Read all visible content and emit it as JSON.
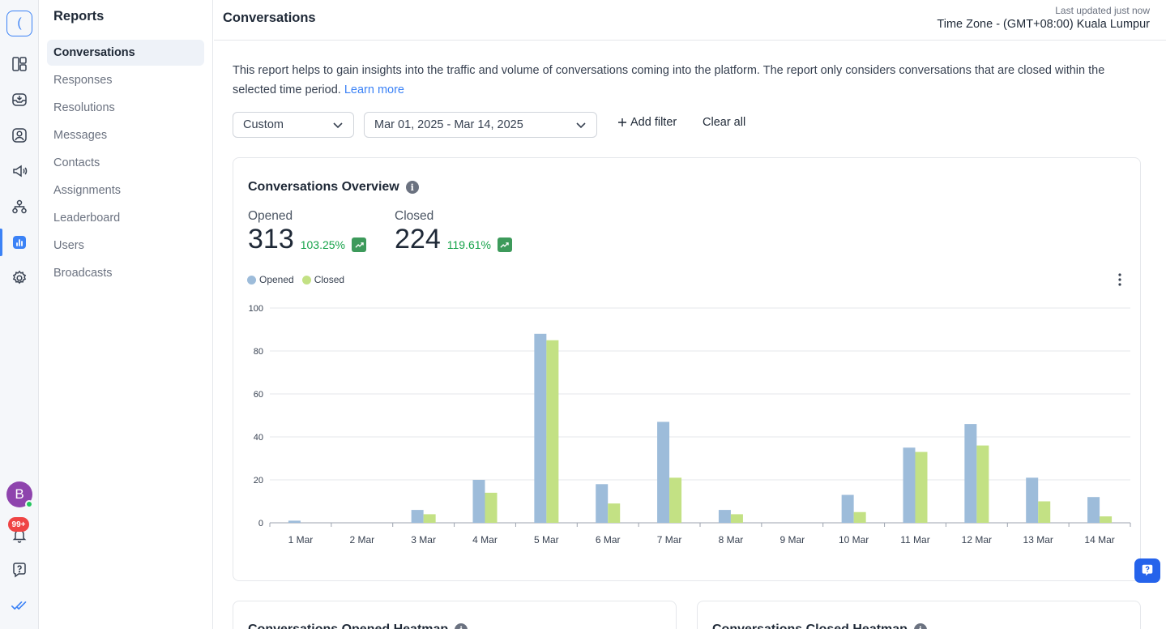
{
  "rail": {
    "logo": "(",
    "avatar_initial": "B",
    "notifications_badge": "99+",
    "accent": "#3b82f6"
  },
  "sidebar": {
    "title": "Reports",
    "items": [
      {
        "label": "Conversations",
        "active": true
      },
      {
        "label": "Responses"
      },
      {
        "label": "Resolutions"
      },
      {
        "label": "Messages"
      },
      {
        "label": "Contacts"
      },
      {
        "label": "Assignments"
      },
      {
        "label": "Leaderboard"
      },
      {
        "label": "Users"
      },
      {
        "label": "Broadcasts"
      }
    ]
  },
  "header": {
    "title": "Conversations",
    "last_updated": "Last updated just now",
    "timezone": "Time Zone - (GMT+08:00) Kuala Lumpur"
  },
  "description": {
    "text": "This report helps to gain insights into the traffic and volume of conversations coming into the platform. The report only considers conversations that are closed within the selected time period.",
    "link": "Learn more"
  },
  "filters": {
    "range_type": "Custom",
    "date_range": "Mar 01, 2025 - Mar 14, 2025",
    "add_filter": "Add filter",
    "clear_all": "Clear all"
  },
  "overview": {
    "title": "Conversations Overview",
    "opened": {
      "label": "Opened",
      "value": "313",
      "change": "103.25%"
    },
    "closed": {
      "label": "Closed",
      "value": "224",
      "change": "119.61%"
    },
    "legend": {
      "opened": "Opened",
      "closed": "Closed"
    }
  },
  "chart_data": {
    "type": "bar",
    "categories": [
      "1 Mar",
      "2 Mar",
      "3 Mar",
      "4 Mar",
      "5 Mar",
      "6 Mar",
      "7 Mar",
      "8 Mar",
      "9 Mar",
      "10 Mar",
      "11 Mar",
      "12 Mar",
      "13 Mar",
      "14 Mar"
    ],
    "series": [
      {
        "name": "Opened",
        "color": "#9dbcda",
        "values": [
          1,
          0,
          6,
          20,
          88,
          18,
          47,
          6,
          0,
          13,
          35,
          46,
          21,
          12
        ]
      },
      {
        "name": "Closed",
        "color": "#c3e184",
        "values": [
          0,
          0,
          4,
          14,
          85,
          9,
          21,
          4,
          0,
          5,
          33,
          36,
          10,
          3
        ]
      }
    ],
    "yticks": [
      0,
      20,
      40,
      60,
      80,
      100
    ],
    "ylim": [
      0,
      100
    ],
    "grid": true,
    "legend": "top-left"
  },
  "heatmaps": {
    "opened_title": "Conversations Opened Heatmap",
    "closed_title": "Conversations Closed Heatmap"
  }
}
